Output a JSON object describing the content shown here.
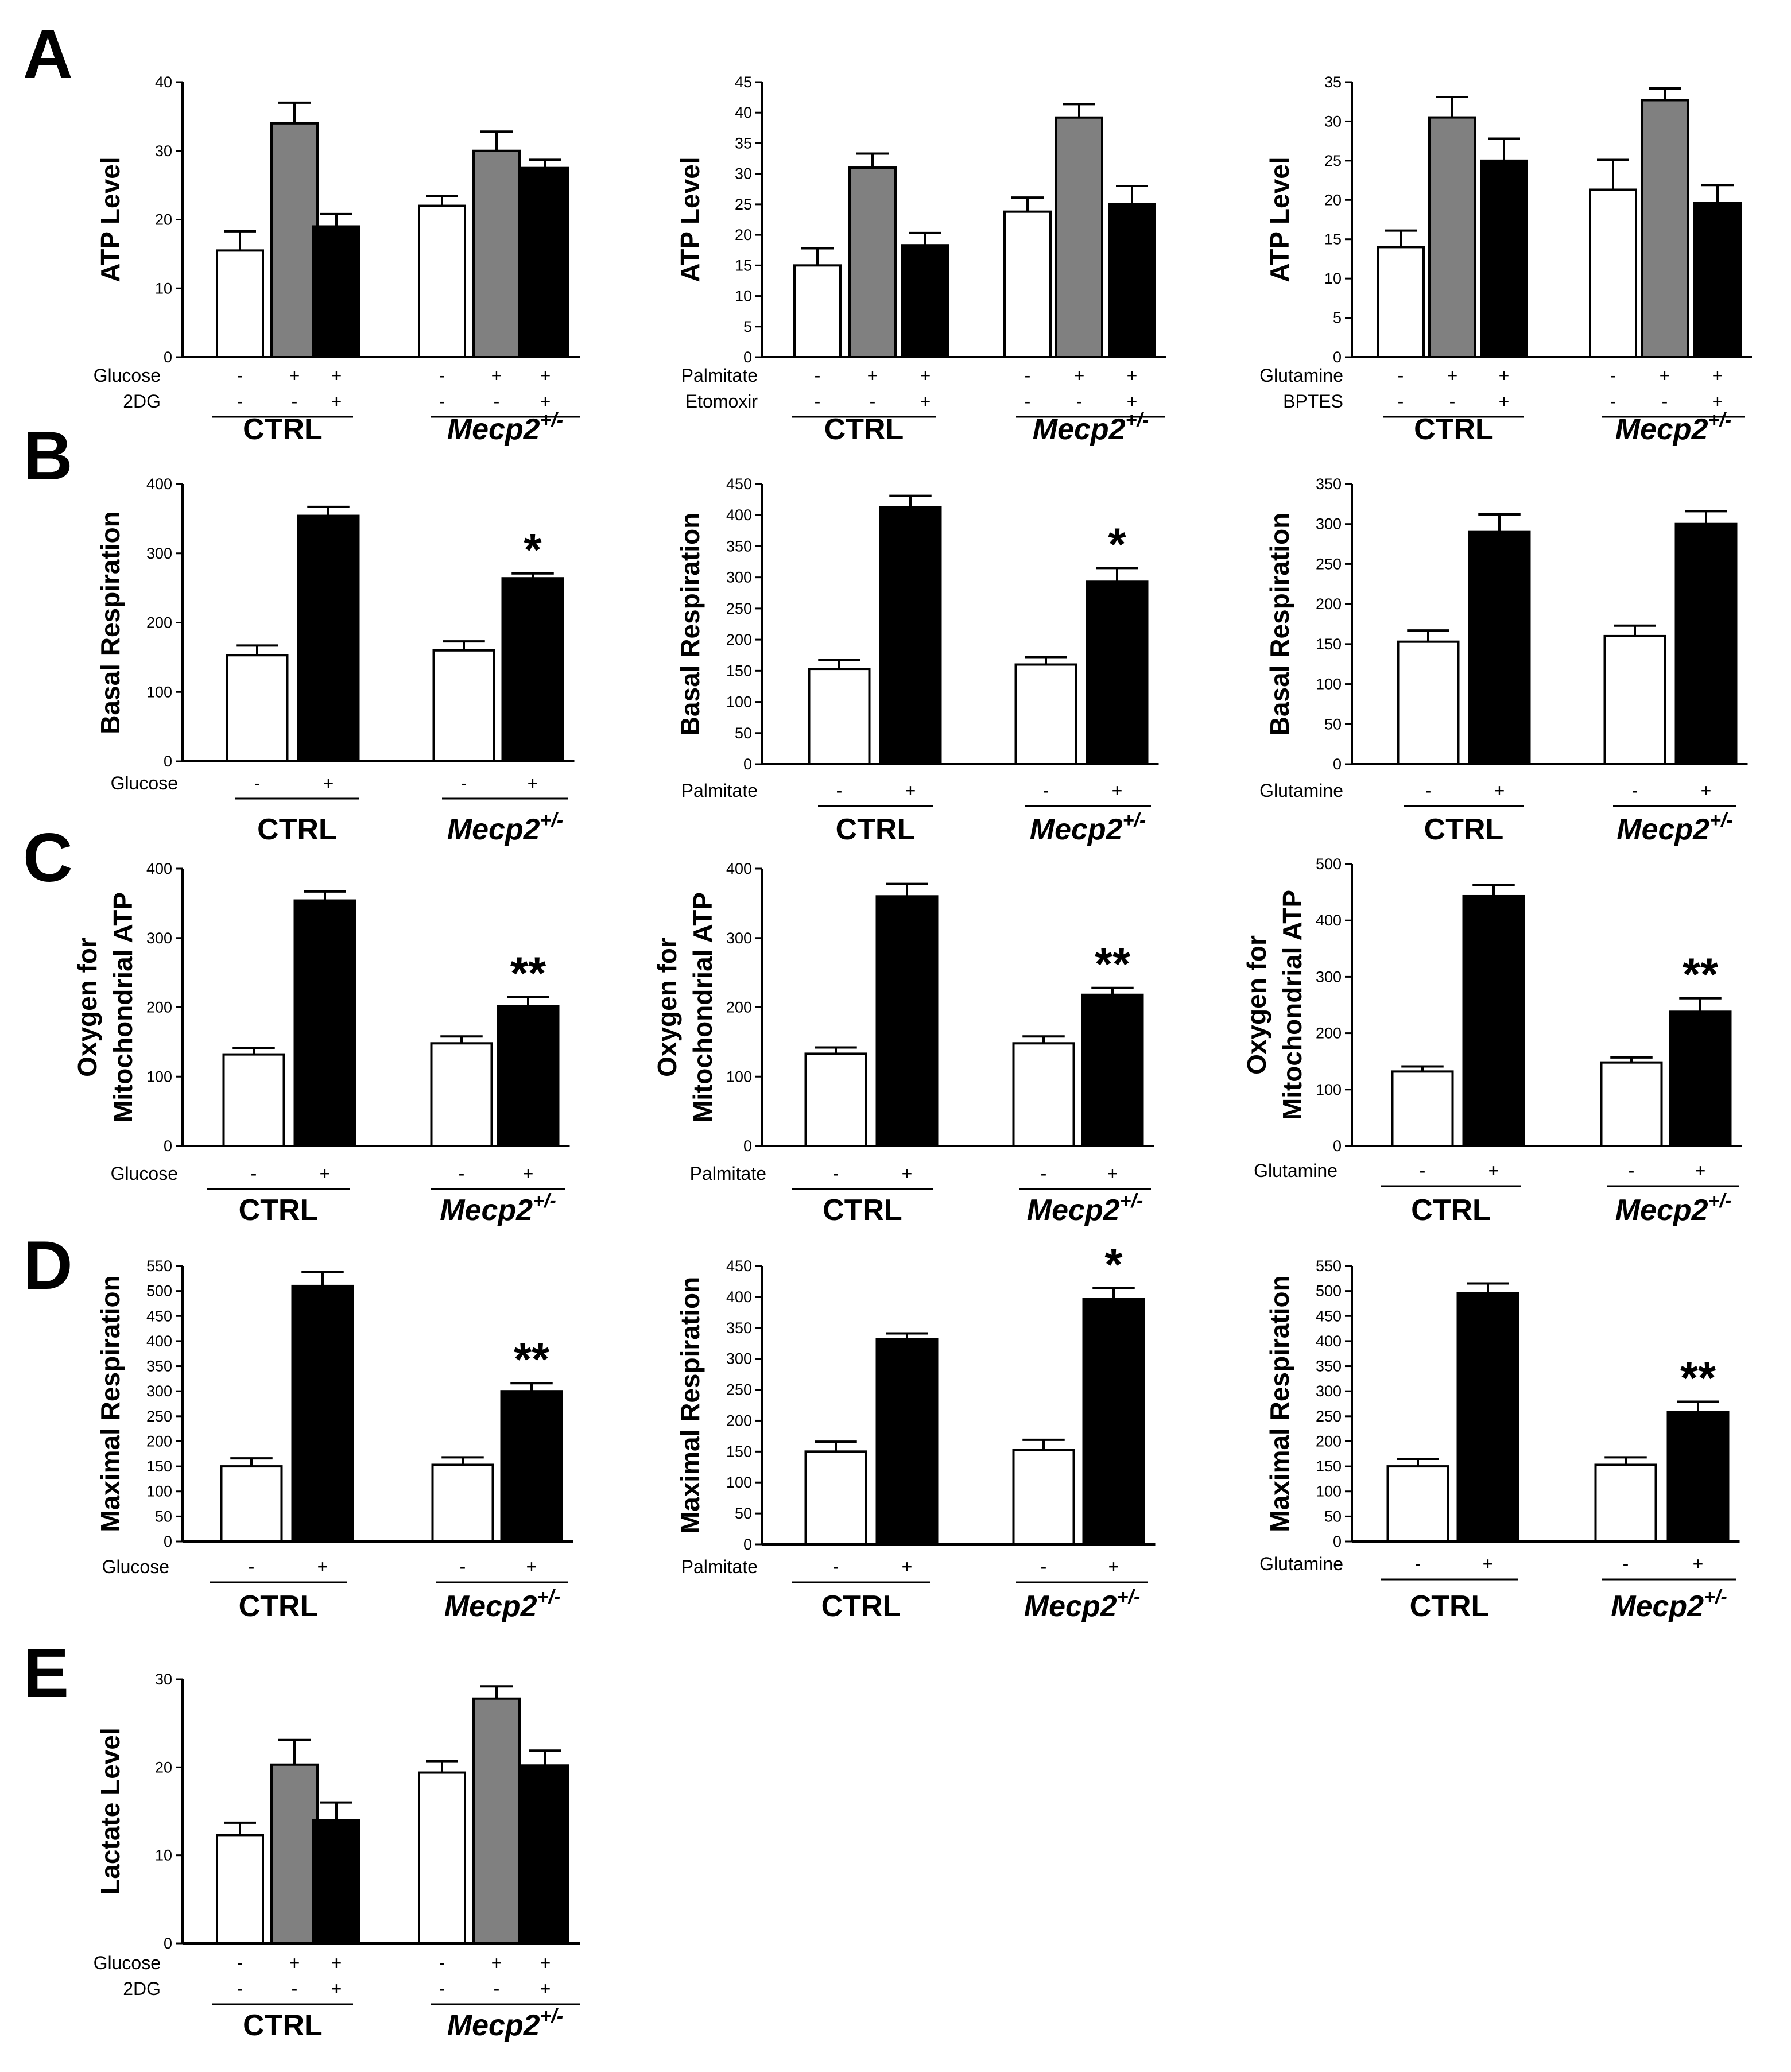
{
  "panel_labels": [
    "A",
    "B",
    "C",
    "D",
    "E"
  ],
  "colors": {
    "white": "#ffffff",
    "gray": "#808080",
    "black": "#000000"
  },
  "chart_data": [
    {
      "id": "A1",
      "type": "bar",
      "ylabel": "ATP Level",
      "ylim": [
        0,
        40
      ],
      "yticks": [
        "0",
        "10",
        "20",
        "30",
        "40"
      ],
      "values": [
        15.5,
        34,
        19,
        22,
        30,
        27.5
      ],
      "errors": [
        2.8,
        3,
        1.8,
        1.4,
        2.8,
        1.2
      ],
      "fills": [
        "white",
        "gray",
        "black",
        "white",
        "gray",
        "black"
      ],
      "rows": [
        {
          "label": "Glucose",
          "signs": [
            "-",
            "+",
            "+",
            "-",
            "+",
            "+"
          ]
        },
        {
          "label": "2DG",
          "signs": [
            "-",
            "-",
            "+",
            "-",
            "-",
            "+"
          ]
        }
      ],
      "groups": [
        "CTRL",
        "Mecp2"
      ],
      "group_sup": "+/-",
      "sig": []
    },
    {
      "id": "A2",
      "type": "bar",
      "ylabel": "ATP Level",
      "ylim": [
        0,
        45
      ],
      "yticks": [
        "0",
        "5",
        "10",
        "15",
        "20",
        "25",
        "30",
        "35",
        "40",
        "45"
      ],
      "values": [
        15,
        31,
        18.3,
        23.8,
        39.2,
        25
      ],
      "errors": [
        2.8,
        2.3,
        2,
        2.3,
        2.2,
        3
      ],
      "fills": [
        "white",
        "gray",
        "black",
        "white",
        "gray",
        "black"
      ],
      "rows": [
        {
          "label": "Palmitate",
          "signs": [
            "-",
            "+",
            "+",
            "-",
            "+",
            "+"
          ]
        },
        {
          "label": "Etomoxir",
          "signs": [
            "-",
            "-",
            "+",
            "-",
            "-",
            "+"
          ]
        }
      ],
      "groups": [
        "CTRL",
        "Mecp2"
      ],
      "group_sup": "+/-",
      "sig": []
    },
    {
      "id": "A3",
      "type": "bar",
      "ylabel": "ATP Level",
      "ylim": [
        0,
        35
      ],
      "yticks": [
        "0",
        "5",
        "10",
        "15",
        "20",
        "25",
        "30",
        "35"
      ],
      "values": [
        14,
        30.5,
        25,
        21.3,
        32.7,
        19.6
      ],
      "errors": [
        2.1,
        2.6,
        2.8,
        3.8,
        1.5,
        2.3
      ],
      "fills": [
        "white",
        "gray",
        "black",
        "white",
        "gray",
        "black"
      ],
      "rows": [
        {
          "label": "Glutamine",
          "signs": [
            "-",
            "+",
            "+",
            "-",
            "+",
            "+"
          ]
        },
        {
          "label": "BPTES",
          "signs": [
            "-",
            "-",
            "+",
            "-",
            "-",
            "+"
          ]
        }
      ],
      "groups": [
        "CTRL",
        "Mecp2"
      ],
      "group_sup": "+/-",
      "sig": []
    },
    {
      "id": "B1",
      "type": "bar",
      "ylabel": "Basal Respiration",
      "ylim": [
        0,
        400
      ],
      "yticks": [
        "0",
        "100",
        "200",
        "300",
        "400"
      ],
      "values": [
        153,
        354,
        160,
        264
      ],
      "errors": [
        14,
        13,
        13,
        7
      ],
      "fills": [
        "white",
        "black",
        "white",
        "black"
      ],
      "rows": [
        {
          "label": "Glucose",
          "signs": [
            "-",
            "+",
            "-",
            "+"
          ]
        }
      ],
      "groups": [
        "CTRL",
        "Mecp2"
      ],
      "group_sup": "+/-",
      "sig": [
        "",
        "",
        "",
        "*"
      ]
    },
    {
      "id": "B2",
      "type": "bar",
      "ylabel": "Basal Respiration",
      "ylim": [
        0,
        450
      ],
      "yticks": [
        "0",
        "50",
        "100",
        "150",
        "200",
        "250",
        "300",
        "350",
        "400",
        "450"
      ],
      "values": [
        153,
        413,
        160,
        293
      ],
      "errors": [
        14,
        18,
        12,
        22
      ],
      "fills": [
        "white",
        "black",
        "white",
        "black"
      ],
      "rows": [
        {
          "label": "Palmitate",
          "signs": [
            "-",
            "+",
            "-",
            "+"
          ]
        }
      ],
      "groups": [
        "CTRL",
        "Mecp2"
      ],
      "group_sup": "+/-",
      "sig": [
        "",
        "",
        "",
        "*"
      ]
    },
    {
      "id": "B3",
      "type": "bar",
      "ylabel": "Basal Respiration",
      "ylim": [
        0,
        350
      ],
      "yticks": [
        "0",
        "50",
        "100",
        "150",
        "200",
        "250",
        "300",
        "350"
      ],
      "values": [
        153,
        290,
        160,
        300
      ],
      "errors": [
        14,
        22,
        13,
        16
      ],
      "fills": [
        "white",
        "black",
        "white",
        "black"
      ],
      "rows": [
        {
          "label": "Glutamine",
          "signs": [
            "-",
            "+",
            "-",
            "+"
          ]
        }
      ],
      "groups": [
        "CTRL",
        "Mecp2"
      ],
      "group_sup": "+/-",
      "sig": []
    },
    {
      "id": "C1",
      "type": "bar",
      "ylabel": "Oxygen for",
      "ylabel2": "Mitochondrial ATP",
      "ylim": [
        0,
        400
      ],
      "yticks": [
        "0",
        "100",
        "200",
        "300",
        "400"
      ],
      "values": [
        132,
        354,
        148,
        202
      ],
      "errors": [
        9,
        13,
        10,
        13
      ],
      "fills": [
        "white",
        "black",
        "white",
        "black"
      ],
      "rows": [
        {
          "label": "Glucose",
          "signs": [
            "-",
            "+",
            "-",
            "+"
          ]
        }
      ],
      "groups": [
        "CTRL",
        "Mecp2"
      ],
      "group_sup": "+/-",
      "sig": [
        "",
        "",
        "",
        "**"
      ]
    },
    {
      "id": "C2",
      "type": "bar",
      "ylabel": "Oxygen for",
      "ylabel2": "Mitochondrial ATP",
      "ylim": [
        0,
        400
      ],
      "yticks": [
        "0",
        "100",
        "200",
        "300",
        "400"
      ],
      "values": [
        133,
        360,
        148,
        218
      ],
      "errors": [
        9,
        18,
        10,
        10
      ],
      "fills": [
        "white",
        "black",
        "white",
        "black"
      ],
      "rows": [
        {
          "label": "Palmitate",
          "signs": [
            "-",
            "+",
            "-",
            "+"
          ]
        }
      ],
      "groups": [
        "CTRL",
        "Mecp2"
      ],
      "group_sup": "+/-",
      "sig": [
        "",
        "",
        "",
        "**"
      ]
    },
    {
      "id": "C3",
      "type": "bar",
      "ylabel": "Oxygen for",
      "ylabel2": "Mitochondrial ATP",
      "ylim": [
        0,
        500
      ],
      "yticks": [
        "0",
        "100",
        "200",
        "300",
        "400",
        "500"
      ],
      "values": [
        132,
        443,
        148,
        238
      ],
      "errors": [
        9,
        20,
        9,
        24
      ],
      "fills": [
        "white",
        "black",
        "white",
        "black"
      ],
      "rows": [
        {
          "label": "Glutamine",
          "signs": [
            "-",
            "+",
            "-",
            "+"
          ]
        }
      ],
      "groups": [
        "CTRL",
        "Mecp2"
      ],
      "group_sup": "+/-",
      "sig": [
        "",
        "",
        "",
        "**"
      ]
    },
    {
      "id": "D1",
      "type": "bar",
      "ylabel": "Maximal Respiration",
      "ylim": [
        0,
        550
      ],
      "yticks": [
        "0",
        "50",
        "100",
        "150",
        "200",
        "250",
        "300",
        "350",
        "400",
        "450",
        "500",
        "550"
      ],
      "values": [
        150,
        510,
        153,
        300
      ],
      "errors": [
        16,
        28,
        15,
        16
      ],
      "fills": [
        "white",
        "black",
        "white",
        "black"
      ],
      "rows": [
        {
          "label": "Glucose",
          "signs": [
            "-",
            "+",
            "-",
            "+"
          ]
        }
      ],
      "groups": [
        "CTRL",
        "Mecp2"
      ],
      "group_sup": "+/-",
      "sig": [
        "",
        "",
        "",
        "**"
      ]
    },
    {
      "id": "D2",
      "type": "bar",
      "ylabel": "Maximal Respiration",
      "ylim": [
        0,
        450
      ],
      "yticks": [
        "0",
        "50",
        "100",
        "150",
        "200",
        "250",
        "300",
        "350",
        "400",
        "450"
      ],
      "values": [
        150,
        332,
        153,
        397
      ],
      "errors": [
        16,
        9,
        16,
        17
      ],
      "fills": [
        "white",
        "black",
        "white",
        "black"
      ],
      "rows": [
        {
          "label": "Palmitate",
          "signs": [
            "-",
            "+",
            "-",
            "+"
          ]
        }
      ],
      "groups": [
        "CTRL",
        "Mecp2"
      ],
      "group_sup": "+/-",
      "sig": [
        "",
        "",
        "",
        "*"
      ]
    },
    {
      "id": "D3",
      "type": "bar",
      "ylabel": "Maximal Respiration",
      "ylim": [
        0,
        550
      ],
      "yticks": [
        "0",
        "50",
        "100",
        "150",
        "200",
        "250",
        "300",
        "350",
        "400",
        "450",
        "500",
        "550"
      ],
      "values": [
        150,
        495,
        153,
        258
      ],
      "errors": [
        15,
        20,
        15,
        21
      ],
      "fills": [
        "white",
        "black",
        "white",
        "black"
      ],
      "rows": [
        {
          "label": "Glutamine",
          "signs": [
            "-",
            "+",
            "-",
            "+"
          ]
        }
      ],
      "groups": [
        "CTRL",
        "Mecp2"
      ],
      "group_sup": "+/-",
      "sig": [
        "",
        "",
        "",
        "**"
      ]
    },
    {
      "id": "E1",
      "type": "bar",
      "ylabel": "Lactate Level",
      "ylim": [
        0,
        30
      ],
      "yticks": [
        "0",
        "10",
        "20",
        "30"
      ],
      "values": [
        12.3,
        20.3,
        14,
        19.4,
        27.8,
        20.2
      ],
      "errors": [
        1.4,
        2.8,
        2,
        1.3,
        1.4,
        1.7
      ],
      "fills": [
        "white",
        "gray",
        "black",
        "white",
        "gray",
        "black"
      ],
      "rows": [
        {
          "label": "Glucose",
          "signs": [
            "-",
            "+",
            "+",
            "-",
            "+",
            "+"
          ]
        },
        {
          "label": "2DG",
          "signs": [
            "-",
            "-",
            "+",
            "-",
            "-",
            "+"
          ]
        }
      ],
      "groups": [
        "CTRL",
        "Mecp2"
      ],
      "group_sup": "+/-",
      "sig": []
    }
  ]
}
